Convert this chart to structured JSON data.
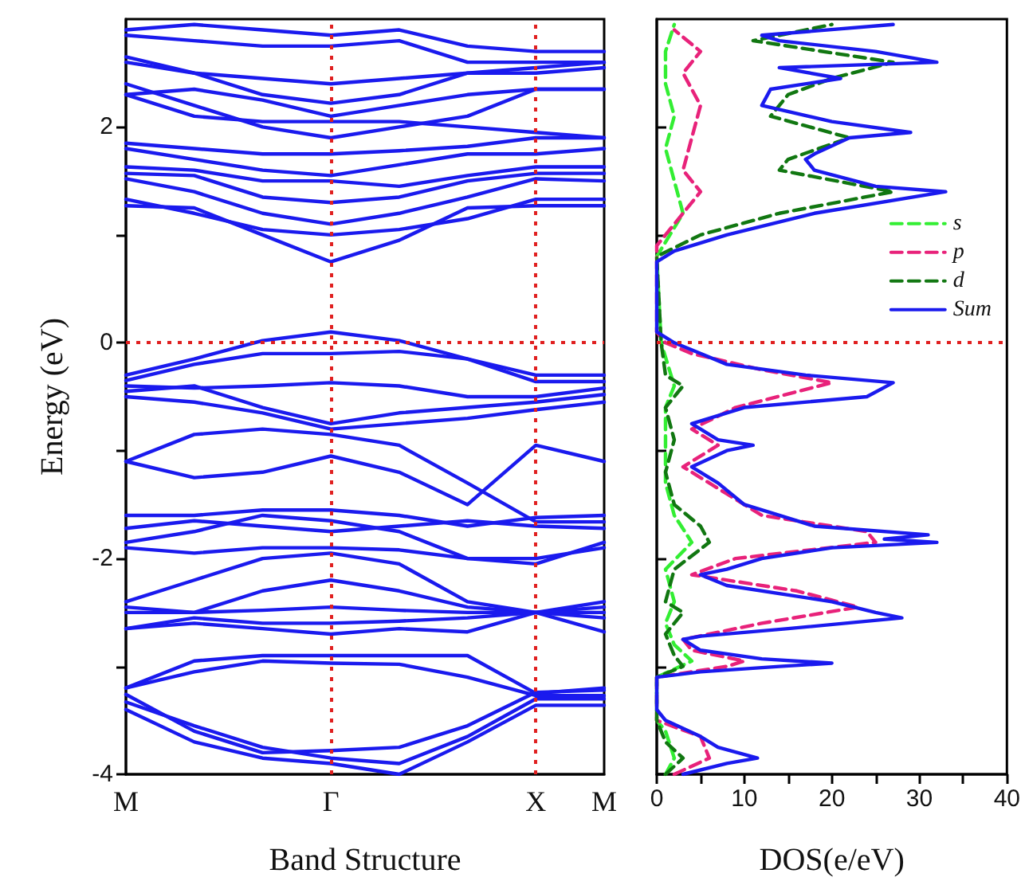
{
  "chart_data": [
    {
      "type": "line",
      "xlabel": "Band Structure",
      "ylabel": "Energy (eV)",
      "marker": "none",
      "line_style": "solid",
      "grid": false,
      "categories": [
        "M",
        null,
        null,
        "Γ",
        null,
        null,
        "X",
        "M"
      ],
      "ylim": [
        -4,
        3
      ],
      "yticks": [
        -4,
        {
          "value": -3,
          "label": null
        },
        -2,
        {
          "value": -1,
          "label": null
        },
        0,
        {
          "value": 1,
          "label": null
        },
        2
      ],
      "ref_lines": [
        {
          "axis": "x",
          "value": "Γ",
          "color": "#e02020",
          "line_style": "dotted"
        },
        {
          "axis": "x",
          "value": "X",
          "color": "#e02020",
          "line_style": "dotted"
        },
        {
          "axis": "y",
          "value": 0,
          "color": "#e02020",
          "line_style": "dotted"
        }
      ],
      "series": [
        {
          "color": "#1a1aee",
          "values": [
            -0.3,
            -0.15,
            0.02,
            0.1,
            0.02,
            -0.15,
            -0.3,
            -0.3
          ]
        },
        {
          "color": "#1a1aee",
          "values": [
            -0.35,
            -0.2,
            -0.1,
            -0.1,
            -0.08,
            -0.15,
            -0.36,
            -0.36
          ]
        },
        {
          "color": "#1a1aee",
          "values": [
            -0.4,
            -0.42,
            -0.4,
            -0.37,
            -0.4,
            -0.5,
            -0.5,
            -0.42
          ]
        },
        {
          "color": "#1a1aee",
          "values": [
            -0.45,
            -0.4,
            -0.6,
            -0.75,
            -0.65,
            -0.6,
            -0.55,
            -0.48
          ]
        },
        {
          "color": "#1a1aee",
          "values": [
            -0.5,
            -0.55,
            -0.65,
            -0.8,
            -0.75,
            -0.7,
            -0.62,
            -0.55
          ]
        },
        {
          "color": "#1a1aee",
          "values": [
            -1.1,
            -0.85,
            -0.8,
            -0.85,
            -0.95,
            -1.3,
            -1.66,
            -1.66
          ]
        },
        {
          "color": "#1a1aee",
          "values": [
            -1.1,
            -1.25,
            -1.2,
            -1.05,
            -1.2,
            -1.5,
            -0.95,
            -1.1
          ]
        },
        {
          "color": "#1a1aee",
          "values": [
            -1.6,
            -1.6,
            -1.55,
            -1.55,
            -1.6,
            -1.7,
            -1.62,
            -1.6
          ]
        },
        {
          "color": "#1a1aee",
          "values": [
            -1.72,
            -1.65,
            -1.7,
            -1.75,
            -1.7,
            -1.65,
            -1.7,
            -1.72
          ]
        },
        {
          "color": "#1a1aee",
          "values": [
            -1.85,
            -1.75,
            -1.6,
            -1.65,
            -1.75,
            -2,
            -2.05,
            -1.85
          ]
        },
        {
          "color": "#1a1aee",
          "values": [
            -1.9,
            -1.95,
            -1.9,
            -1.9,
            -1.92,
            -2,
            -2,
            -1.9
          ]
        },
        {
          "color": "#1a1aee",
          "values": [
            -2.4,
            -2.2,
            -2,
            -1.95,
            -2.05,
            -2.4,
            -2.5,
            -2.4
          ]
        },
        {
          "color": "#1a1aee",
          "values": [
            -2.45,
            -2.5,
            -2.3,
            -2.2,
            -2.3,
            -2.45,
            -2.5,
            -2.45
          ]
        },
        {
          "color": "#1a1aee",
          "values": [
            -2.5,
            -2.5,
            -2.48,
            -2.45,
            -2.48,
            -2.5,
            -2.5,
            -2.5
          ]
        },
        {
          "color": "#1a1aee",
          "values": [
            -2.65,
            -2.55,
            -2.6,
            -2.6,
            -2.58,
            -2.55,
            -2.5,
            -2.55
          ]
        },
        {
          "color": "#1a1aee",
          "values": [
            -2.65,
            -2.6,
            -2.65,
            -2.7,
            -2.65,
            -2.68,
            -2.5,
            -2.68
          ]
        },
        {
          "color": "#1a1aee",
          "values": [
            -3.2,
            -2.95,
            -2.9,
            -2.9,
            -2.9,
            -2.9,
            -3.25,
            -3.2
          ]
        },
        {
          "color": "#1a1aee",
          "values": [
            -3.2,
            -3.05,
            -2.95,
            -2.97,
            -2.98,
            -3.1,
            -3.27,
            -3.27
          ]
        },
        {
          "color": "#1a1aee",
          "values": [
            -3.26,
            -3.6,
            -3.8,
            -3.78,
            -3.75,
            -3.55,
            -3.24,
            -3.22
          ]
        },
        {
          "color": "#1a1aee",
          "values": [
            -3.33,
            -3.55,
            -3.75,
            -3.85,
            -3.9,
            -3.65,
            -3.3,
            -3.3
          ]
        },
        {
          "color": "#1a1aee",
          "values": [
            -3.4,
            -3.7,
            -3.85,
            -3.9,
            -4,
            -3.7,
            -3.36,
            -3.36
          ]
        },
        {
          "color": "#1a1aee",
          "values": [
            1.27,
            1.25,
            1,
            0.75,
            0.95,
            1.25,
            1.27,
            1.27
          ]
        },
        {
          "color": "#1a1aee",
          "values": [
            1.33,
            1.2,
            1.05,
            1,
            1.05,
            1.15,
            1.33,
            1.33
          ]
        },
        {
          "color": "#1a1aee",
          "values": [
            1.52,
            1.4,
            1.2,
            1.1,
            1.2,
            1.35,
            1.52,
            1.5
          ]
        },
        {
          "color": "#1a1aee",
          "values": [
            1.57,
            1.55,
            1.35,
            1.3,
            1.35,
            1.5,
            1.57,
            1.57
          ]
        },
        {
          "color": "#1a1aee",
          "values": [
            1.63,
            1.6,
            1.5,
            1.5,
            1.45,
            1.55,
            1.63,
            1.63
          ]
        },
        {
          "color": "#1a1aee",
          "values": [
            1.8,
            1.7,
            1.6,
            1.55,
            1.65,
            1.75,
            1.75,
            1.8
          ]
        },
        {
          "color": "#1a1aee",
          "values": [
            1.85,
            1.8,
            1.75,
            1.75,
            1.78,
            1.82,
            1.9,
            1.9
          ]
        },
        {
          "color": "#1a1aee",
          "values": [
            2.4,
            2.2,
            2,
            1.9,
            2,
            2.1,
            2.35,
            2.35
          ]
        },
        {
          "color": "#1a1aee",
          "values": [
            2.3,
            2.1,
            2.05,
            2.05,
            2.05,
            2,
            1.95,
            1.9
          ]
        },
        {
          "color": "#1a1aee",
          "values": [
            2.3,
            2.35,
            2.25,
            2.1,
            2.2,
            2.3,
            2.35,
            2.35
          ]
        },
        {
          "color": "#1a1aee",
          "values": [
            2.6,
            2.5,
            2.45,
            2.4,
            2.45,
            2.5,
            2.5,
            2.55
          ]
        },
        {
          "color": "#1a1aee",
          "values": [
            2.85,
            2.8,
            2.75,
            2.75,
            2.8,
            2.6,
            2.6,
            2.6
          ]
        },
        {
          "color": "#1a1aee",
          "values": [
            2.9,
            2.95,
            2.9,
            2.85,
            2.9,
            2.75,
            2.7,
            2.7
          ]
        },
        {
          "color": "#1a1aee",
          "values": [
            2.65,
            2.5,
            2.3,
            2.22,
            2.3,
            2.5,
            2.55,
            2.6
          ]
        }
      ]
    },
    {
      "type": "line",
      "xlabel": "DOS(e/eV)",
      "marker": "none",
      "grid": false,
      "legend": "right",
      "tick_labels": "x",
      "xlim": [
        0,
        40
      ],
      "xticks": [
        0,
        {
          "value": 5,
          "label": null
        },
        10,
        {
          "value": 15,
          "label": null
        },
        20,
        {
          "value": 25,
          "label": null
        },
        30,
        {
          "value": 35,
          "label": null
        },
        40
      ],
      "ylim": [
        -4,
        3
      ],
      "yticks": [
        -4,
        -3,
        -2,
        -1,
        0,
        1,
        2
      ],
      "ref_lines": [
        {
          "axis": "y",
          "value": 0,
          "color": "#e02020",
          "line_style": "dotted"
        }
      ],
      "series": [
        {
          "name": "s",
          "color": "#33ee33",
          "line_style": "dashed",
          "x": [
            1,
            2,
            1,
            0,
            0,
            4,
            2,
            1,
            2,
            1,
            4,
            2,
            1,
            1,
            1,
            2,
            0.5,
            0,
            3,
            2,
            1,
            2,
            1,
            1,
            2
          ],
          "values": [
            -4,
            -3.85,
            -3.6,
            -3.5,
            -3.1,
            -2.95,
            -2.8,
            -2.6,
            -2.4,
            -2.1,
            -1.85,
            -1.6,
            -1.3,
            -1,
            -0.6,
            -0.4,
            0,
            0.8,
            1.2,
            1.5,
            1.8,
            2.1,
            2.4,
            2.7,
            2.95
          ]
        },
        {
          "name": "p",
          "color": "#e8227a",
          "line_style": "dashed",
          "x": [
            2,
            6,
            5,
            0,
            0,
            8,
            10,
            4,
            3,
            12,
            23,
            16,
            4,
            9,
            25,
            24,
            12,
            8,
            3,
            7,
            4,
            9,
            20,
            12,
            4,
            1,
            0,
            0,
            2,
            5,
            3,
            4,
            5,
            3,
            5,
            2
          ],
          "values": [
            -4,
            -3.85,
            -3.65,
            -3.5,
            -3.1,
            -3,
            -2.95,
            -2.85,
            -2.75,
            -2.6,
            -2.45,
            -2.3,
            -2.15,
            -2,
            -1.85,
            -1.75,
            -1.6,
            -1.4,
            -1.15,
            -0.95,
            -0.8,
            -0.6,
            -0.37,
            -0.25,
            -0.1,
            0,
            0.1,
            0.9,
            1.1,
            1.4,
            1.6,
            1.9,
            2.2,
            2.5,
            2.7,
            2.9
          ]
        },
        {
          "name": "d",
          "color": "#117711",
          "line_style": "dashed",
          "x": [
            1,
            3,
            1,
            0,
            0,
            3,
            2,
            1,
            3,
            1,
            2,
            6,
            5,
            2,
            1,
            2,
            1,
            3,
            1,
            0.5,
            0,
            5,
            14,
            27,
            14,
            15,
            22,
            13,
            15,
            20,
            27,
            11,
            20
          ],
          "values": [
            -4,
            -3.85,
            -3.7,
            -3.5,
            -3.1,
            -3,
            -2.9,
            -2.7,
            -2.5,
            -2.4,
            -2.1,
            -1.85,
            -1.7,
            -1.5,
            -1.2,
            -0.9,
            -0.6,
            -0.4,
            -0.3,
            0,
            0.8,
            1,
            1.2,
            1.4,
            1.6,
            1.7,
            1.9,
            2.1,
            2.3,
            2.45,
            2.6,
            2.8,
            2.95
          ]
        },
        {
          "name": "Sum",
          "color": "#1a1aee",
          "line_style": "solid",
          "x": [
            3,
            8,
            11.5,
            7,
            5,
            1,
            0,
            0,
            5,
            14,
            20,
            12,
            5,
            3,
            5,
            15,
            28,
            25,
            20,
            8,
            5,
            8,
            12,
            20,
            32,
            26,
            31,
            18,
            14,
            10,
            7,
            4,
            8,
            11,
            7,
            4,
            10,
            24,
            27,
            17,
            8,
            5,
            2,
            0,
            0,
            2,
            8,
            18,
            33,
            25,
            18,
            17,
            18,
            22,
            29,
            20,
            12,
            13,
            21,
            14,
            32,
            25,
            14,
            12,
            27
          ],
          "values": [
            -4,
            -3.9,
            -3.85,
            -3.75,
            -3.65,
            -3.5,
            -3.4,
            -3.1,
            -3.05,
            -3,
            -2.97,
            -2.93,
            -2.85,
            -2.75,
            -2.72,
            -2.65,
            -2.55,
            -2.5,
            -2.4,
            -2.25,
            -2.15,
            -2.1,
            -2,
            -1.9,
            -1.85,
            -1.82,
            -1.78,
            -1.7,
            -1.6,
            -1.5,
            -1.3,
            -1.15,
            -1,
            -0.95,
            -0.9,
            -0.75,
            -0.6,
            -0.5,
            -0.37,
            -0.3,
            -0.2,
            -0.1,
            0,
            0.1,
            0.75,
            0.85,
            1,
            1.2,
            1.4,
            1.45,
            1.6,
            1.7,
            1.75,
            1.9,
            1.95,
            2.05,
            2.2,
            2.35,
            2.45,
            2.55,
            2.6,
            2.7,
            2.8,
            2.85,
            2.95
          ]
        }
      ]
    }
  ]
}
